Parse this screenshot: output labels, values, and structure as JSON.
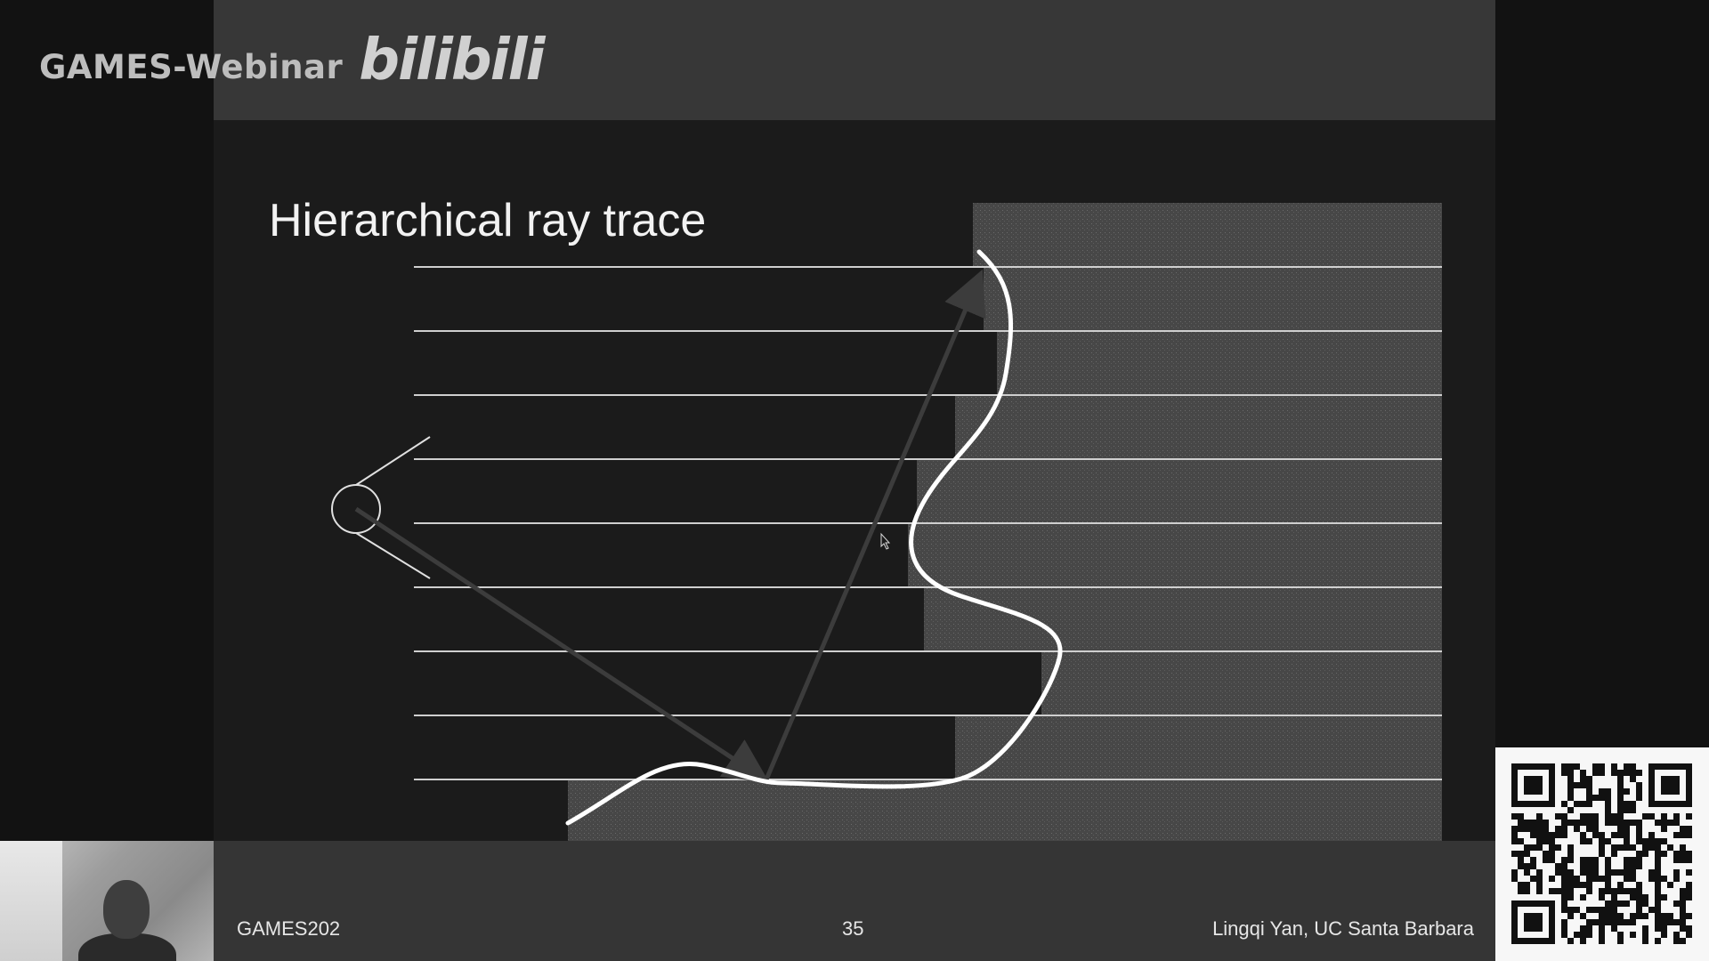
{
  "watermark": {
    "text": "GAMES-Webinar",
    "brand": "bilibili"
  },
  "slide": {
    "title": "Hierarchical ray trace"
  },
  "footer": {
    "left": "GAMES202",
    "page_number": "35",
    "right": "Lingqi Yan, UC Santa Barbara"
  },
  "colors": {
    "background": "#131313",
    "slide_background": "#1b1b1b",
    "band": "#363636",
    "lines": "#cfcfcf",
    "depth_fill": "#444444",
    "curve": "#ffffff",
    "text": "#f2f2f2"
  },
  "diagram": {
    "level_count": 9,
    "icons": [
      "eye-icon",
      "ray-arrow",
      "reflected-ray-arrow",
      "surface-curve",
      "mouse-cursor-icon"
    ]
  }
}
